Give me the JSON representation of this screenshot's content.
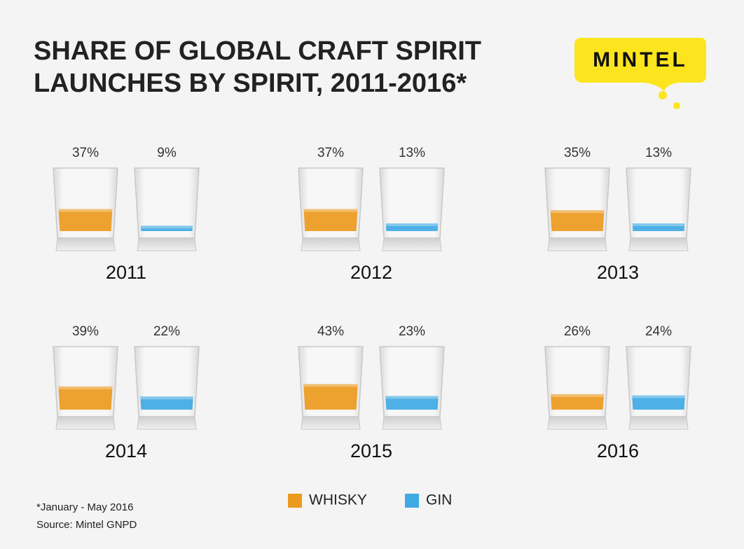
{
  "chart_data": {
    "type": "glasses",
    "title": "SHARE OF GLOBAL CRAFT SPIRIT LAUNCHES BY SPIRIT, 2011-2016*",
    "categories": [
      "2011",
      "2012",
      "2013",
      "2014",
      "2015",
      "2016"
    ],
    "series": [
      {
        "name": "WHISKY",
        "color": "#eb9a1e",
        "values": [
          37,
          37,
          35,
          39,
          43,
          26
        ],
        "value_labels": [
          "37%",
          "37%",
          "35%",
          "39%",
          "43%",
          "26%"
        ]
      },
      {
        "name": "GIN",
        "color": "#3fa9e4",
        "values": [
          9,
          13,
          13,
          22,
          23,
          24
        ],
        "value_labels": [
          "9%",
          "13%",
          "13%",
          "22%",
          "23%",
          "24%"
        ]
      }
    ],
    "note": "*January - May 2016",
    "source": "Source: Mintel GNPD"
  },
  "logo": "MINTEL"
}
